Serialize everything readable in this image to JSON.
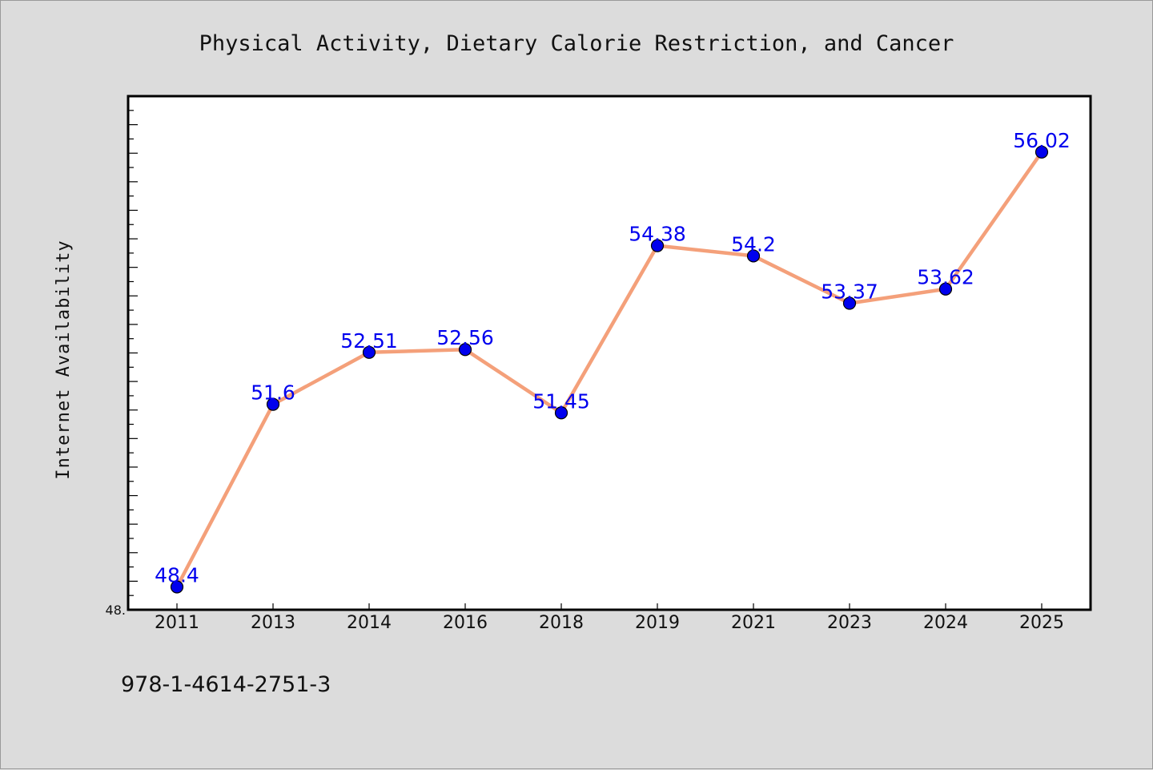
{
  "chart_data": {
    "type": "line",
    "title": "Physical Activity, Dietary Calorie Restriction, and Cancer",
    "xlabel": "",
    "ylabel": "Internet Availability",
    "categories": [
      "2011",
      "2013",
      "2014",
      "2016",
      "2018",
      "2019",
      "2021",
      "2023",
      "2024",
      "2025"
    ],
    "series": [
      {
        "values": [
          48.4,
          51.6,
          52.51,
          52.56,
          51.45,
          54.38,
          54.2,
          53.37,
          53.62,
          56.02
        ],
        "labels": [
          "48.4",
          "51.6",
          "52.51",
          "52.56",
          "51.45",
          "54.38",
          "54.2",
          "53.37",
          "53.62",
          "56.02"
        ]
      }
    ],
    "ylim": [
      48.0,
      57.0
    ],
    "y_tick_label": "48.",
    "grid": false,
    "legend": "none",
    "colors": {
      "line": "#f4a07a",
      "marker": "#0000ee",
      "data_label": "#0000ee",
      "plot_background": "#ffffff",
      "page_background": "#dcdcdc"
    }
  },
  "footer": {
    "text": "978-1-4614-2751-3"
  }
}
